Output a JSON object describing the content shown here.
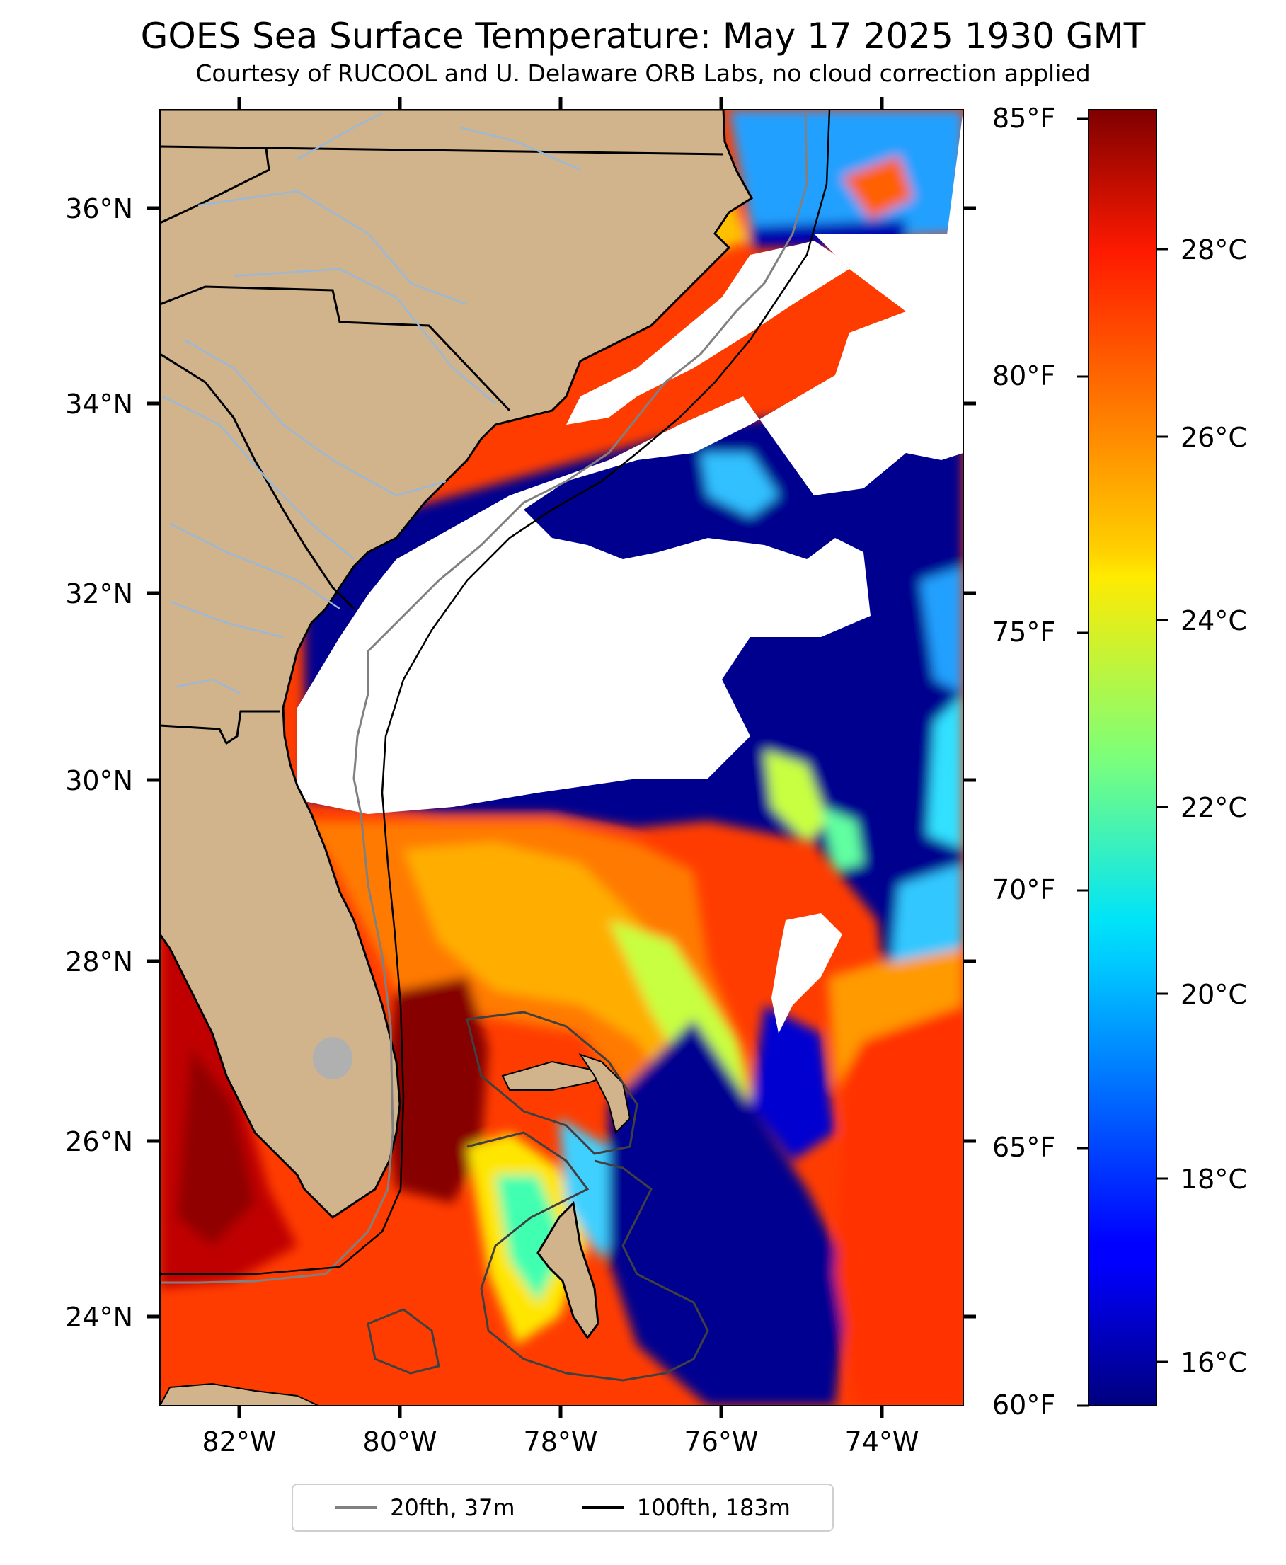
{
  "header": {
    "title": "GOES Sea Surface Temperature: May 17 2025 1930 GMT",
    "subtitle": "Courtesy of RUCOOL and U. Delaware ORB Labs, no cloud correction applied"
  },
  "map": {
    "extent": {
      "lon_min": -83.0,
      "lon_max": -73.0,
      "lat_min": 23.1,
      "lat_max": 37.0
    },
    "lat_ticks": [
      {
        "value": 36,
        "label": "36°N"
      },
      {
        "value": 34,
        "label": "34°N"
      },
      {
        "value": 32,
        "label": "32°N"
      },
      {
        "value": 30,
        "label": "30°N"
      },
      {
        "value": 28,
        "label": "28°N"
      },
      {
        "value": 26,
        "label": "26°N"
      },
      {
        "value": 24,
        "label": "24°N"
      }
    ],
    "lon_ticks": [
      {
        "value": -82,
        "label": "82°W"
      },
      {
        "value": -80,
        "label": "80°W"
      },
      {
        "value": -78,
        "label": "78°W"
      },
      {
        "value": -76,
        "label": "76°W"
      },
      {
        "value": -74,
        "label": "74°W"
      }
    ],
    "colors": {
      "land": "#d2b48c",
      "cloud": "#ffffff",
      "river": "#9ab8d8",
      "border": "#000000"
    }
  },
  "colorbar": {
    "colormap": "jet",
    "range_c": [
      15.6,
      29.4
    ],
    "celsius_ticks": [
      {
        "value": 16,
        "label": "16°C"
      },
      {
        "value": 18,
        "label": "18°C"
      },
      {
        "value": 20,
        "label": "20°C"
      },
      {
        "value": 22,
        "label": "22°C"
      },
      {
        "value": 24,
        "label": "24°C"
      },
      {
        "value": 26,
        "label": "26°C"
      },
      {
        "value": 28,
        "label": "28°C"
      }
    ],
    "fahrenheit_ticks": [
      {
        "value": 60,
        "label": "60°F"
      },
      {
        "value": 65,
        "label": "65°F"
      },
      {
        "value": 70,
        "label": "70°F"
      },
      {
        "value": 75,
        "label": "75°F"
      },
      {
        "value": 80,
        "label": "80°F"
      },
      {
        "value": 85,
        "label": "85°F"
      }
    ]
  },
  "legend": {
    "items": [
      {
        "label": "20fth, 37m",
        "color": "#808080"
      },
      {
        "label": "100fth, 183m",
        "color": "#000000"
      }
    ]
  }
}
